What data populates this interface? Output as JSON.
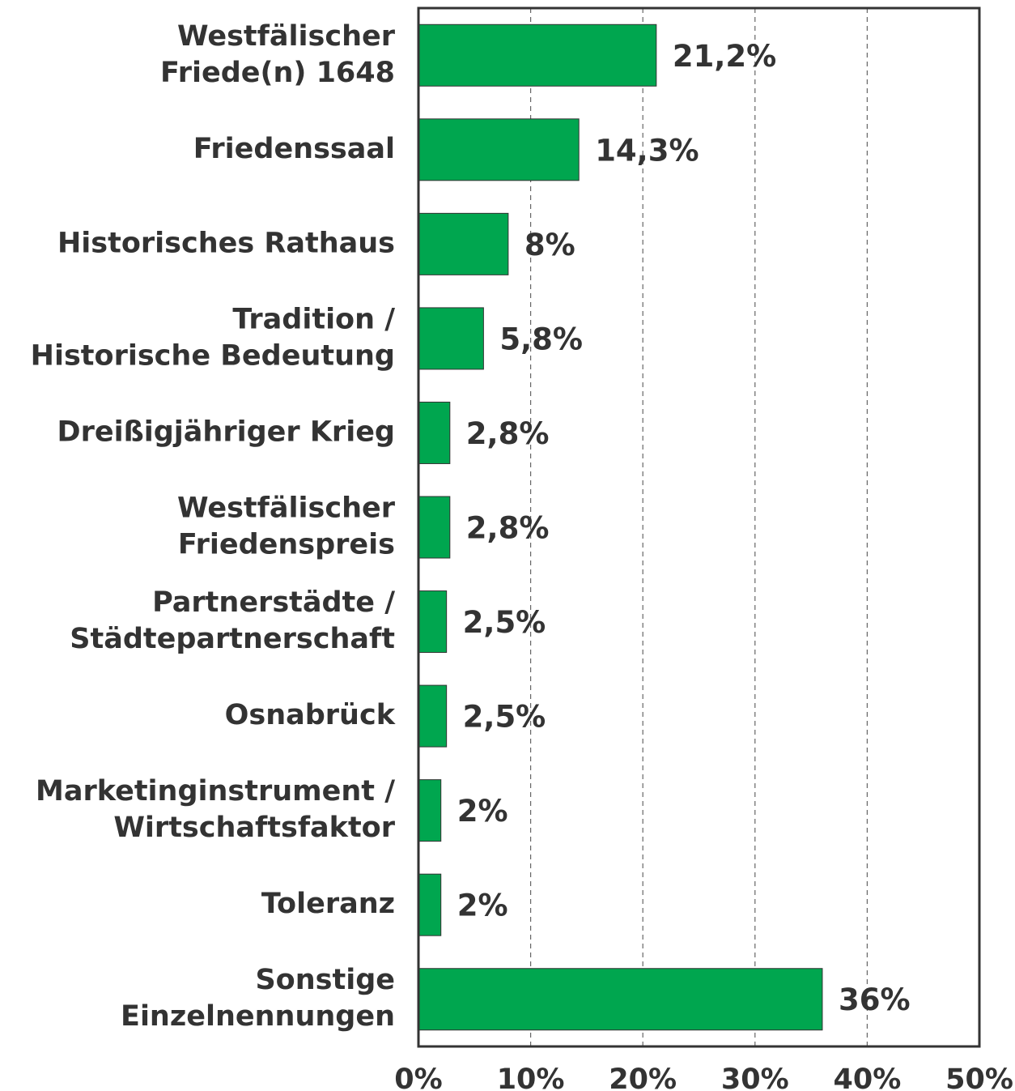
{
  "chart_data": {
    "type": "bar",
    "orientation": "horizontal",
    "categories": [
      "Westfälischer\nFriede(n) 1648",
      "Friedenssaal",
      "Historisches Rathaus",
      "Tradition /\nHistorische Bedeutung",
      "Dreißigjähriger Krieg",
      "Westfälischer\nFriedenspreis",
      "Partnerstädte /\nStädtepartnerschaft",
      "Osnabrück",
      "Marketinginstrument /\nWirtschaftsfaktor",
      "Toleranz",
      "Sonstige\nEinzelnennungen"
    ],
    "values": [
      21.2,
      14.3,
      8,
      5.8,
      2.8,
      2.8,
      2.5,
      2.5,
      2,
      2,
      36
    ],
    "value_labels": [
      "21,2%",
      "14,3%",
      "8%",
      "5,8%",
      "2,8%",
      "2,8%",
      "2,5%",
      "2,5%",
      "2%",
      "2%",
      "36%"
    ],
    "color": "#00a64f",
    "xlim": [
      0,
      50
    ],
    "xticks": [
      {
        "value": 0,
        "label": "0%"
      },
      {
        "value": 10,
        "label": "10%"
      },
      {
        "value": 20,
        "label": "20%"
      },
      {
        "value": 30,
        "label": "30%"
      },
      {
        "value": 40,
        "label": "40%"
      },
      {
        "value": 50,
        "label": "50%"
      }
    ],
    "grid": true
  }
}
